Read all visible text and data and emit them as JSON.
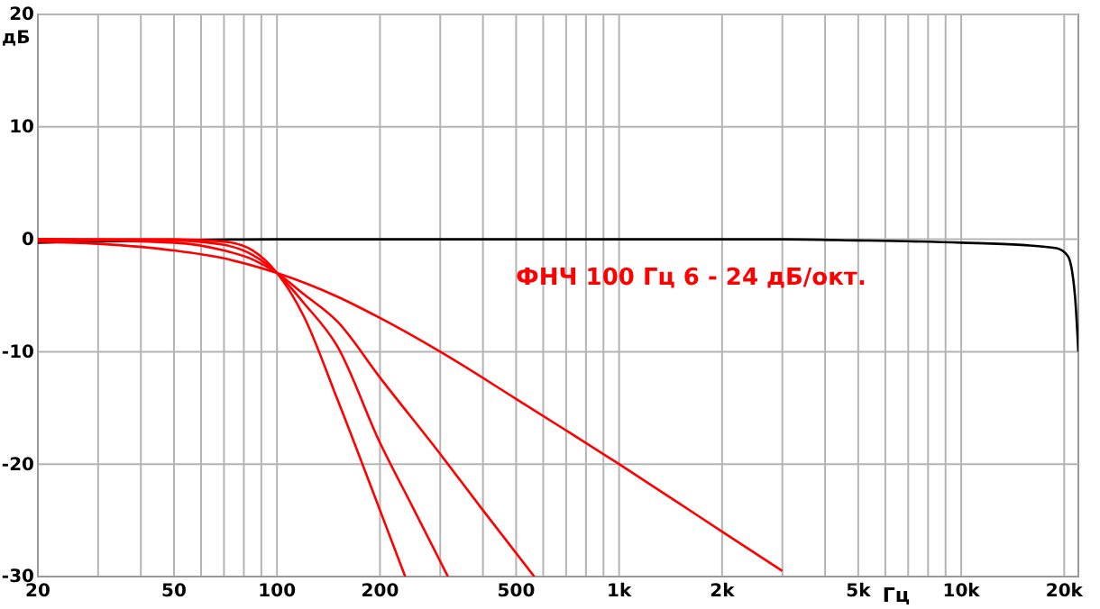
{
  "chart_data": {
    "type": "line",
    "xlabel": "Гц",
    "ylabel": "дБ",
    "log": "x",
    "grid": true,
    "annotations": [
      "ФНЧ 100 Гц 6 - 24 дБ/окт."
    ],
    "xlim": [
      20,
      22000
    ],
    "ylim": [
      -30,
      20
    ],
    "xticks": [
      20,
      {
        "value": 30,
        "label": null
      },
      {
        "value": 40,
        "label": null
      },
      50,
      {
        "value": 60,
        "label": null
      },
      {
        "value": 70,
        "label": null
      },
      {
        "value": 80,
        "label": null
      },
      {
        "value": 90,
        "label": null
      },
      100,
      200,
      {
        "value": 300,
        "label": null
      },
      {
        "value": 400,
        "label": null
      },
      500,
      {
        "value": 600,
        "label": null
      },
      {
        "value": 700,
        "label": null
      },
      {
        "value": 800,
        "label": null
      },
      {
        "value": 900,
        "label": null
      },
      {
        "value": 1000,
        "label": "1k"
      },
      {
        "value": 2000,
        "label": "2k"
      },
      {
        "value": 3000,
        "label": null
      },
      {
        "value": 4000,
        "label": null
      },
      {
        "value": 5000,
        "label": "5k"
      },
      {
        "value": 6000,
        "label": null
      },
      {
        "value": 7000,
        "label": null
      },
      {
        "value": 8000,
        "label": null
      },
      {
        "value": 9000,
        "label": null
      },
      {
        "value": 10000,
        "label": "10k"
      },
      {
        "value": 20000,
        "label": "20k"
      }
    ],
    "yticks": [
      -30,
      -20,
      -10,
      0,
      10,
      20
    ],
    "series": [
      {
        "color": "#000000",
        "x": [
          20,
          100,
          1000,
          3000,
          5000,
          10000,
          15000,
          19000,
          20500,
          21500,
          22000
        ],
        "values": [
          -0.3,
          0,
          0,
          0,
          -0.1,
          -0.3,
          -0.5,
          -0.8,
          -1.5,
          -5,
          -10
        ]
      },
      {
        "color": "#ff0000",
        "x": [
          20,
          30,
          50,
          70,
          100,
          150,
          200,
          300,
          500,
          700,
          1000,
          1500,
          2000,
          3000
        ],
        "values": [
          -0.2,
          -0.4,
          -1,
          -1.7,
          -3,
          -5.1,
          -7,
          -10,
          -14.2,
          -17,
          -20,
          -23.5,
          -26,
          -29.5
        ]
      },
      {
        "color": "#ff0000",
        "x": [
          20,
          50,
          70,
          85,
          100,
          120,
          150,
          200,
          300,
          400,
          565
        ],
        "values": [
          0,
          -0.3,
          -1,
          -1.8,
          -3,
          -4.9,
          -7.3,
          -12.3,
          -19.1,
          -24.1,
          -30
        ]
      },
      {
        "color": "#ff0000",
        "x": [
          20,
          50,
          70,
          85,
          100,
          120,
          150,
          200,
          250,
          316
        ],
        "values": [
          0,
          -0.1,
          -0.5,
          -1.4,
          -3,
          -5.7,
          -9.5,
          -18.1,
          -23.9,
          -30
        ]
      },
      {
        "color": "#ff0000",
        "x": [
          20,
          50,
          70,
          85,
          100,
          120,
          150,
          200,
          237
        ],
        "values": [
          0,
          0,
          -0.2,
          -1,
          -3,
          -6.9,
          -14.2,
          -24.1,
          -30
        ]
      }
    ]
  }
}
